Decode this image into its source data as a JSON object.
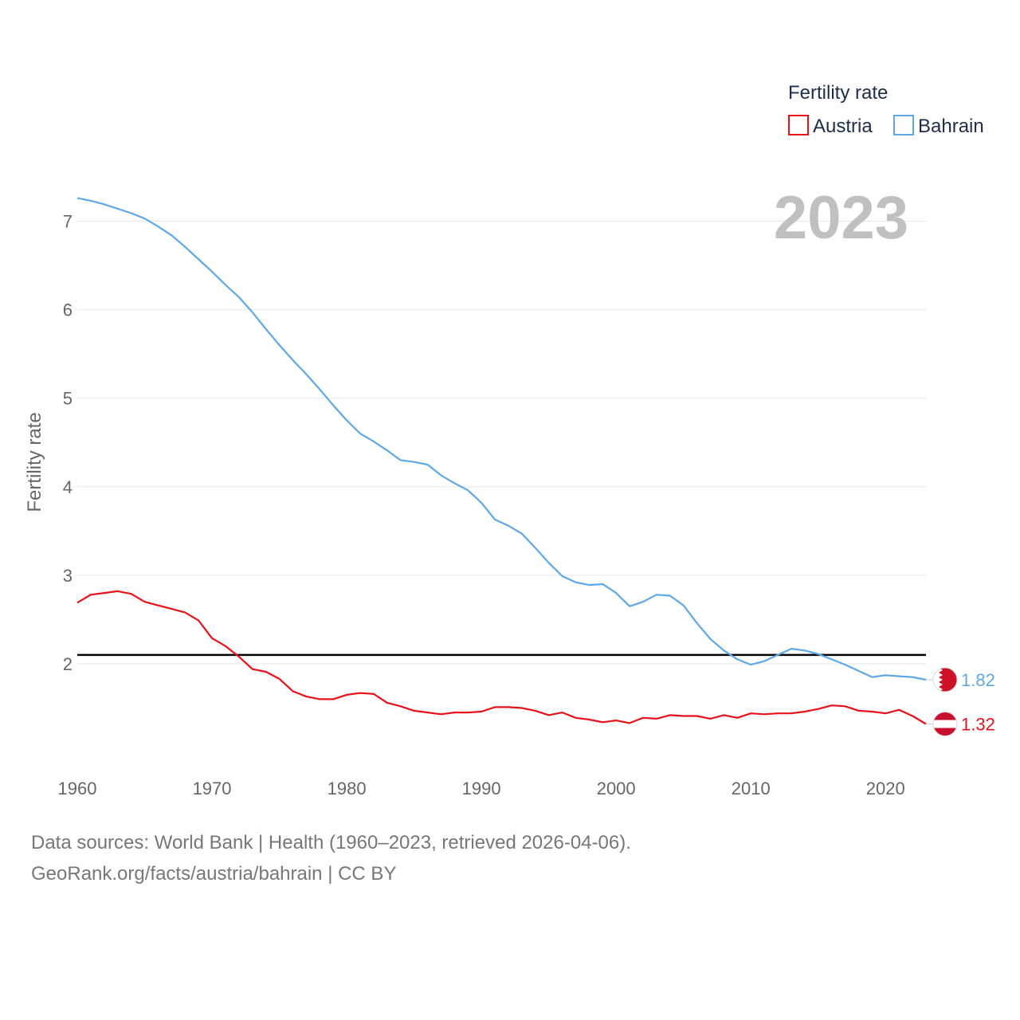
{
  "chart_data": {
    "type": "line",
    "year_label": "2023",
    "ylabel": "Fertility rate",
    "xlabel": "",
    "xlim": [
      1960,
      2023
    ],
    "ylim": [
      1.0,
      7.5
    ],
    "x_ticks": [
      1960,
      1970,
      1980,
      1990,
      2000,
      2010,
      2020
    ],
    "y_ticks": [
      2,
      3,
      4,
      5,
      6,
      7
    ],
    "grid": true,
    "reference_line": {
      "value": 2.1,
      "color": "#000000"
    },
    "legend": {
      "title": "Fertility rate",
      "position": "top-right"
    },
    "x": [
      1960,
      1961,
      1962,
      1963,
      1964,
      1965,
      1966,
      1967,
      1968,
      1969,
      1970,
      1971,
      1972,
      1973,
      1974,
      1975,
      1976,
      1977,
      1978,
      1979,
      1980,
      1981,
      1982,
      1983,
      1984,
      1985,
      1986,
      1987,
      1988,
      1989,
      1990,
      1991,
      1992,
      1993,
      1994,
      1995,
      1996,
      1997,
      1998,
      1999,
      2000,
      2001,
      2002,
      2003,
      2004,
      2005,
      2006,
      2007,
      2008,
      2009,
      2010,
      2011,
      2012,
      2013,
      2014,
      2015,
      2016,
      2017,
      2018,
      2019,
      2020,
      2021,
      2022,
      2023
    ],
    "series": [
      {
        "name": "Austria",
        "color": "#e8111a",
        "end_label": "1.32",
        "flag": "austria-flag-icon",
        "values": [
          2.69,
          2.78,
          2.8,
          2.82,
          2.79,
          2.7,
          2.66,
          2.62,
          2.58,
          2.49,
          2.29,
          2.2,
          2.08,
          1.94,
          1.91,
          1.83,
          1.69,
          1.63,
          1.6,
          1.6,
          1.65,
          1.67,
          1.66,
          1.56,
          1.52,
          1.47,
          1.45,
          1.43,
          1.45,
          1.45,
          1.46,
          1.51,
          1.51,
          1.5,
          1.47,
          1.42,
          1.45,
          1.39,
          1.37,
          1.34,
          1.36,
          1.33,
          1.39,
          1.38,
          1.42,
          1.41,
          1.41,
          1.38,
          1.42,
          1.39,
          1.44,
          1.43,
          1.44,
          1.44,
          1.46,
          1.49,
          1.53,
          1.52,
          1.47,
          1.46,
          1.44,
          1.48,
          1.41,
          1.32
        ]
      },
      {
        "name": "Bahrain",
        "color": "#5ea8e8",
        "end_label": "1.82",
        "flag": "bahrain-flag-icon",
        "values": [
          7.26,
          7.23,
          7.19,
          7.14,
          7.09,
          7.03,
          6.94,
          6.84,
          6.71,
          6.57,
          6.43,
          6.28,
          6.14,
          5.97,
          5.78,
          5.6,
          5.43,
          5.27,
          5.1,
          4.92,
          4.75,
          4.6,
          4.51,
          4.41,
          4.3,
          4.28,
          4.25,
          4.13,
          4.04,
          3.96,
          3.82,
          3.63,
          3.56,
          3.47,
          3.31,
          3.14,
          2.99,
          2.92,
          2.89,
          2.9,
          2.8,
          2.65,
          2.7,
          2.78,
          2.77,
          2.66,
          2.46,
          2.28,
          2.15,
          2.05,
          1.99,
          2.03,
          2.1,
          2.17,
          2.15,
          2.11,
          2.05,
          1.99,
          1.92,
          1.85,
          1.87,
          1.86,
          1.85,
          1.82
        ]
      }
    ]
  },
  "footer": {
    "line1": "Data sources: World Bank | Health (1960–2023, retrieved 2026-04-06).",
    "line2": "GeoRank.org/facts/austria/bahrain | CC BY"
  }
}
